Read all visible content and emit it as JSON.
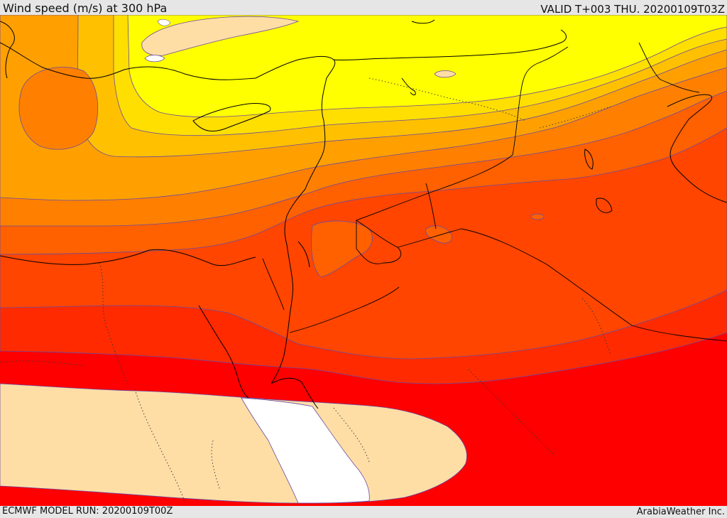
{
  "header": {
    "title": "Wind speed (m/s) at 300 hPa",
    "valid": "VALID T+003 THU. 20200109T03Z"
  },
  "footer": {
    "model_run": "ECMWF MODEL RUN: 20200109T00Z",
    "credit": "ArabiaWeather Inc."
  },
  "map": {
    "variable": "wind speed",
    "level": "300 hPa",
    "region": "Eastern Mediterranean and Middle East",
    "shading_colors": [
      "#ffffff",
      "#ffdea6",
      "#ffff00",
      "#ffdf00",
      "#ffc000",
      "#ffa000",
      "#ff8000",
      "#ff6000",
      "#ff4500",
      "#ff2a00",
      "#ff0000"
    ]
  }
}
